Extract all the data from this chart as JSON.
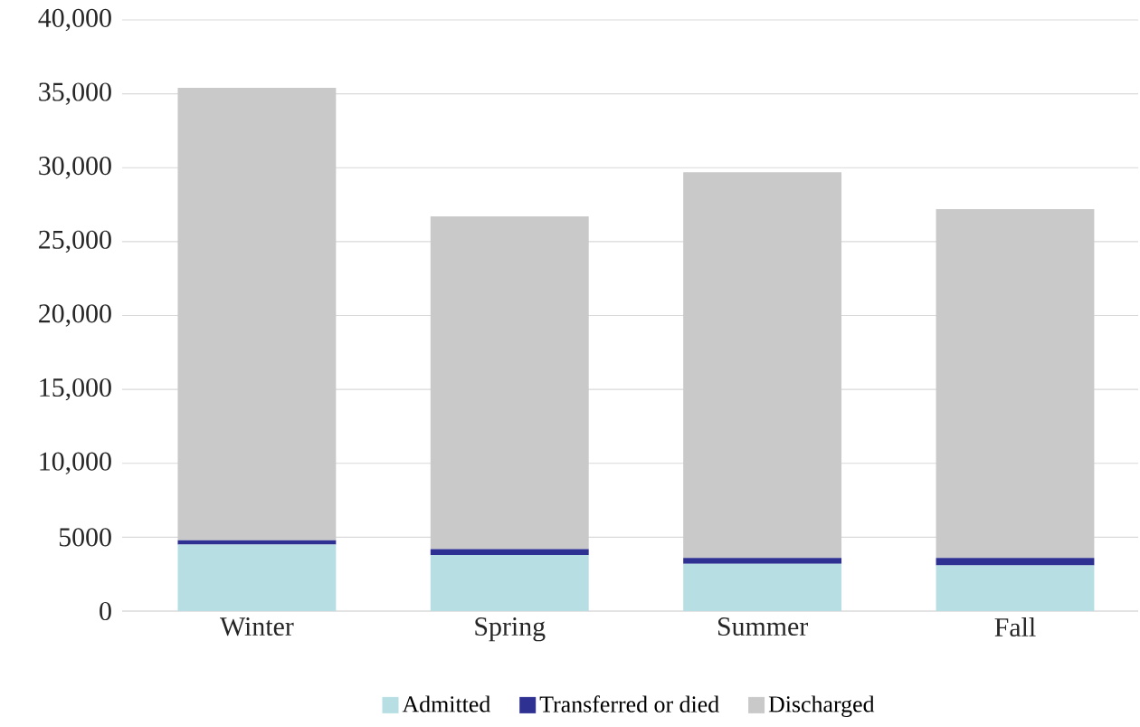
{
  "chart_data": {
    "type": "bar",
    "stacked": true,
    "categories": [
      "Winter",
      "Spring",
      "Summer",
      "Fall"
    ],
    "series": [
      {
        "name": "Admitted",
        "color": "#b7dfe3",
        "values": [
          4500,
          3800,
          3200,
          3100
        ]
      },
      {
        "name": "Transferred or died",
        "color": "#2e3192",
        "values": [
          300,
          400,
          400,
          500
        ]
      },
      {
        "name": "Discharged",
        "color": "#c9c9c9",
        "values": [
          30600,
          22500,
          26100,
          23600
        ]
      }
    ],
    "ylim": [
      0,
      40000
    ],
    "yticks": [
      0,
      5000,
      {
        "value": 10000,
        "label": "10,000"
      },
      {
        "value": 15000,
        "label": "15,000"
      },
      {
        "value": 20000,
        "label": "20,000"
      },
      {
        "value": 25000,
        "label": "25,000"
      },
      {
        "value": 30000,
        "label": "30,000"
      },
      {
        "value": 35000,
        "label": "35,000"
      },
      {
        "value": 40000,
        "label": "40,000"
      }
    ],
    "grid": "y",
    "legend": "bottom"
  }
}
